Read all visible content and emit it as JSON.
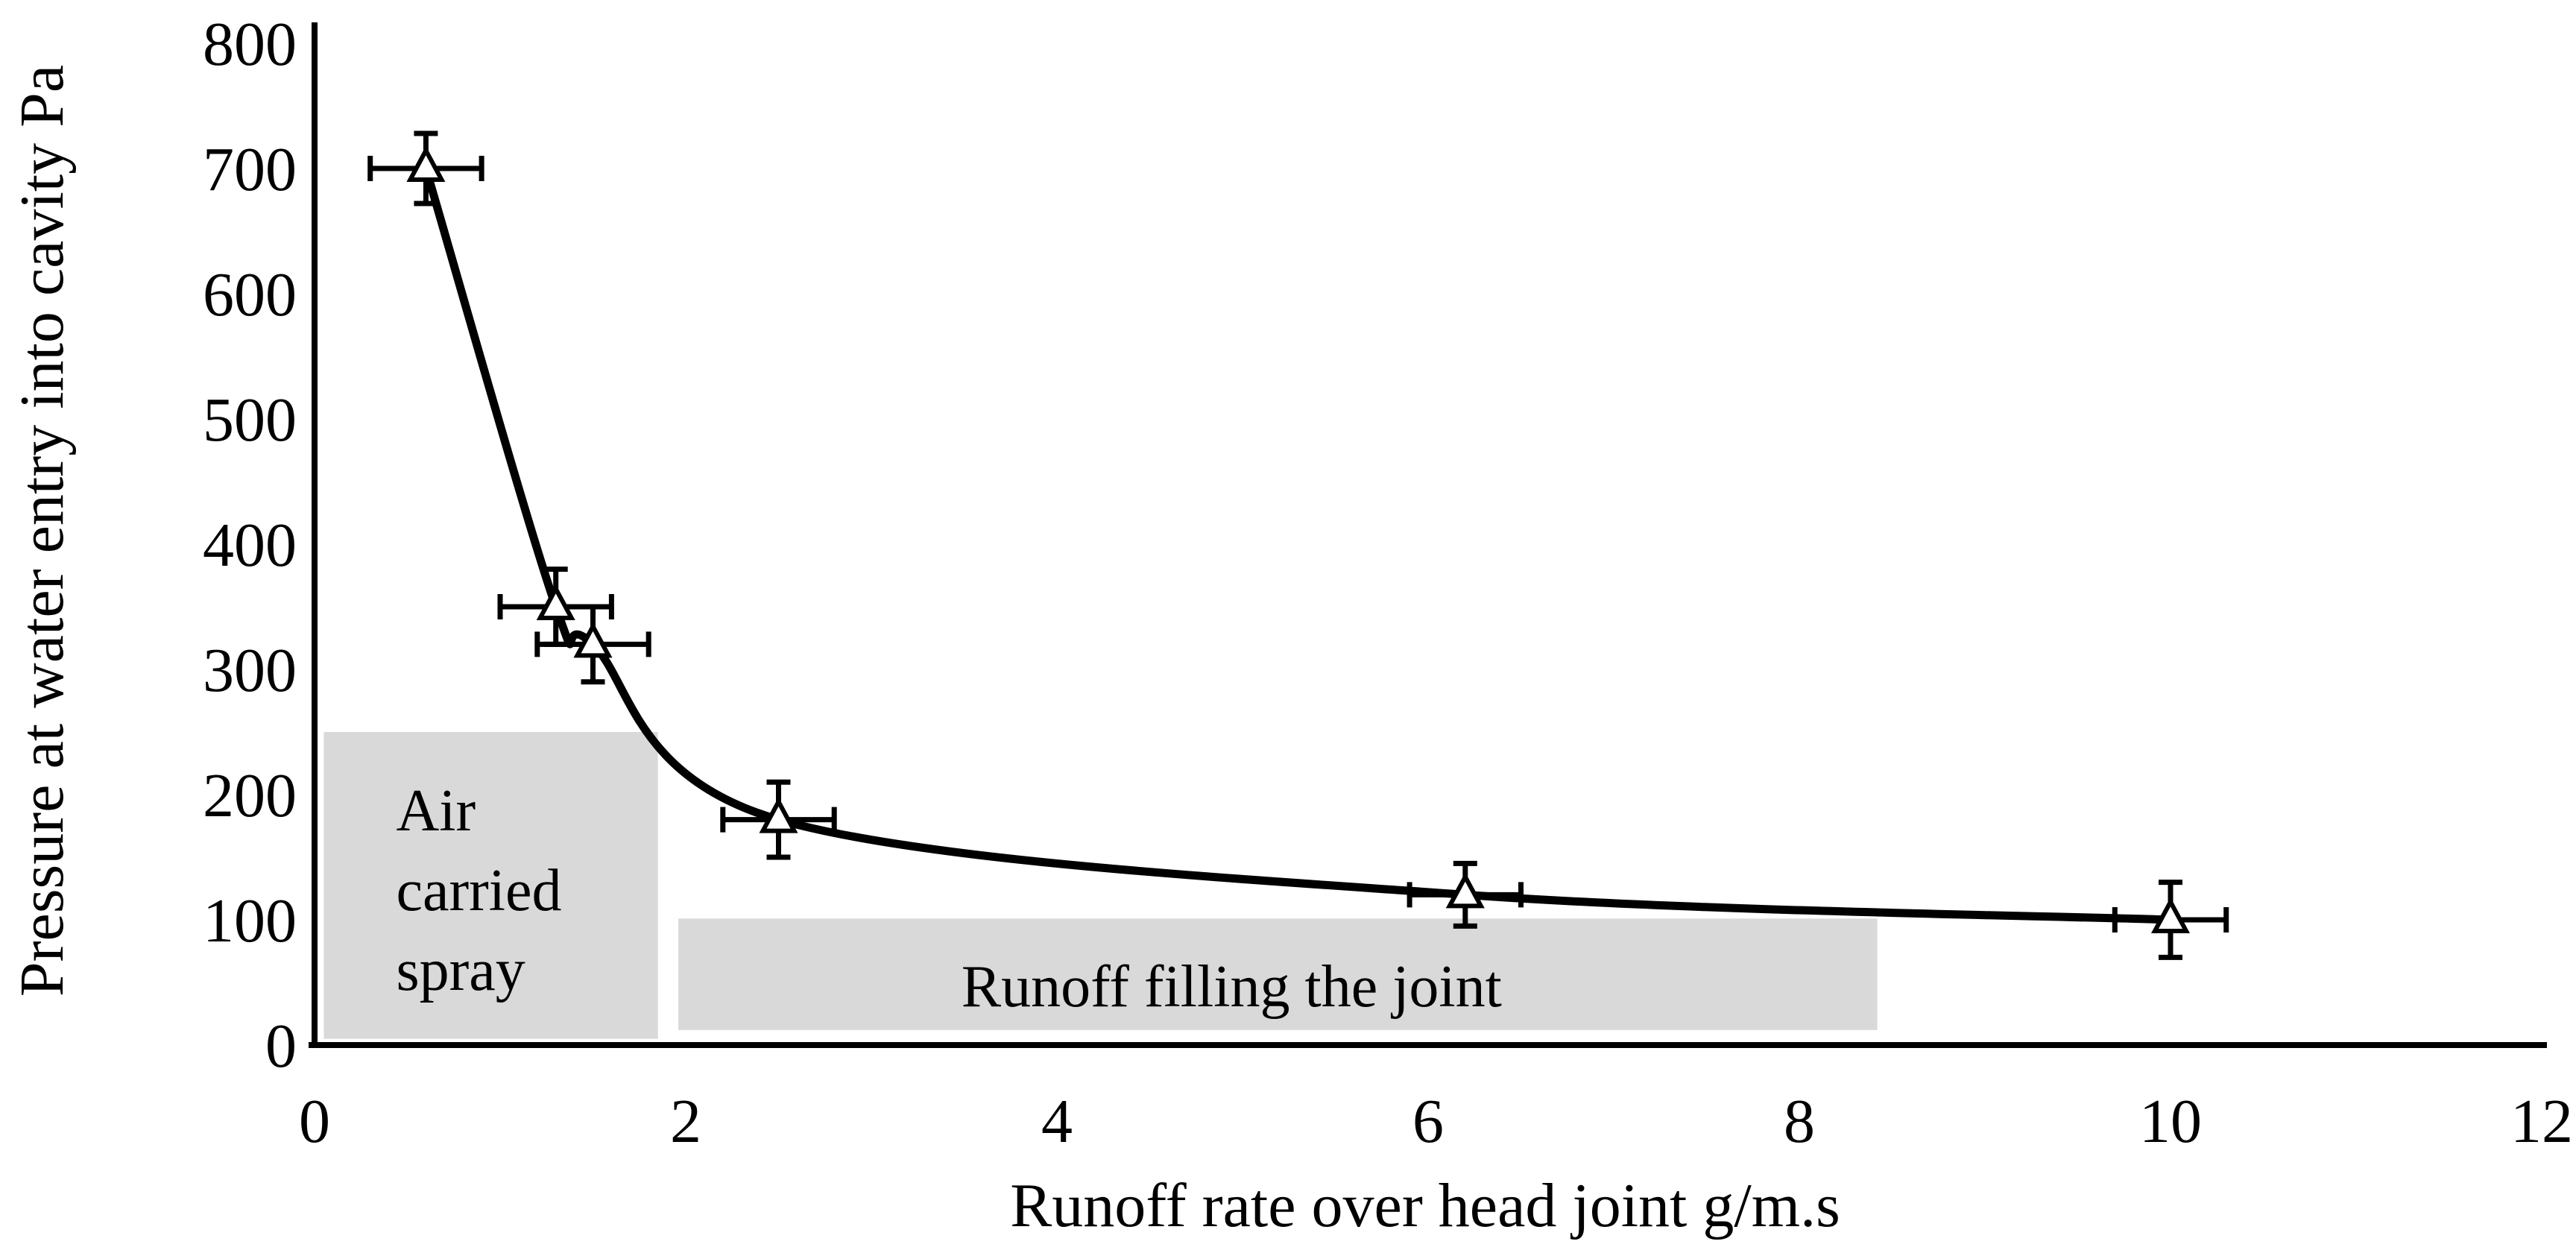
{
  "chart_data": {
    "type": "scatter",
    "title": "",
    "xlabel": "Runoff rate over head joint  g/m.s",
    "ylabel": "Pressure at water entry into cavity  Pa",
    "xlim": [
      0,
      12
    ],
    "ylim": [
      0,
      800
    ],
    "x_ticks": [
      0,
      2,
      4,
      6,
      8,
      10,
      12
    ],
    "y_ticks": [
      0,
      100,
      200,
      300,
      400,
      500,
      600,
      700,
      800
    ],
    "grid": false,
    "legend": "none",
    "marker": "open-triangle",
    "curve_style": "smooth-fit-through-points",
    "series": [
      {
        "name": "Pressure at water entry into cavity",
        "points": [
          {
            "x": 0.6,
            "y": 700,
            "xerr": 0.3,
            "yerr": 28
          },
          {
            "x": 1.3,
            "y": 350,
            "xerr": 0.3,
            "yerr": 30
          },
          {
            "x": 1.5,
            "y": 320,
            "xerr": 0.3,
            "yerr": 30
          },
          {
            "x": 2.5,
            "y": 180,
            "xerr": 0.3,
            "yerr": 30
          },
          {
            "x": 6.2,
            "y": 120,
            "xerr": 0.3,
            "yerr": 25
          },
          {
            "x": 10.0,
            "y": 100,
            "xerr": 0.3,
            "yerr": 30
          }
        ]
      }
    ],
    "regions": [
      {
        "label": "Air carried spray",
        "label_lines": [
          "Air",
          "carried",
          "spray"
        ],
        "x0": 0.05,
        "x1": 1.85,
        "y0": 5,
        "y1": 250,
        "fill": "#d9d9d9"
      },
      {
        "label": "Runoff filling the joint",
        "label_lines": [
          "Runoff filling the joint"
        ],
        "x0": 1.96,
        "x1": 8.42,
        "y0": 12,
        "y1": 101,
        "fill": "#d9d9d9"
      }
    ],
    "colors": {
      "line": "#000000",
      "axis": "#000000",
      "marker_stroke": "#000000",
      "marker_fill": "#ffffff",
      "region_fill": "#d9d9d9",
      "text": "#000000"
    }
  }
}
